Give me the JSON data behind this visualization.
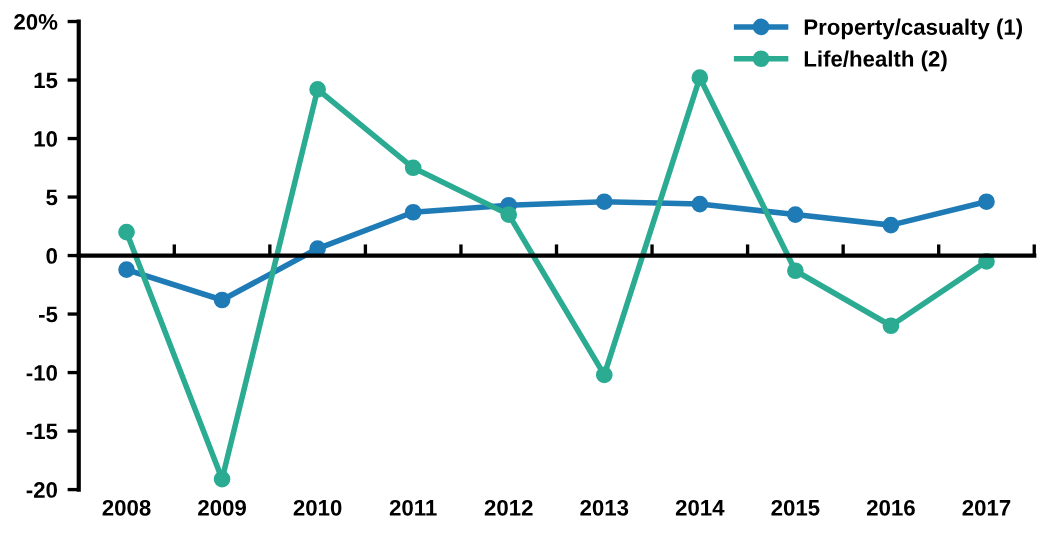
{
  "chart_data": {
    "type": "line",
    "categories": [
      "2008",
      "2009",
      "2010",
      "2011",
      "2012",
      "2013",
      "2014",
      "2015",
      "2016",
      "2017"
    ],
    "series": [
      {
        "name": "Property/casualty (1)",
        "color": "#1f7bb6",
        "values": [
          -1.2,
          -3.8,
          0.6,
          3.7,
          4.3,
          4.6,
          4.4,
          3.5,
          2.6,
          4.6
        ]
      },
      {
        "name": "Life/health (2)",
        "color": "#2aab92",
        "values": [
          2.0,
          -19.1,
          14.2,
          7.5,
          3.5,
          -10.2,
          15.2,
          -1.3,
          -6.0,
          -0.5
        ]
      }
    ],
    "ylim": [
      -20,
      20
    ],
    "yticks": [
      -20,
      -15,
      -10,
      -5,
      0,
      5,
      10,
      15,
      {
        "value": 20,
        "label": "20%"
      }
    ],
    "marker": "circle",
    "line_style": "solid",
    "legend": "top right"
  }
}
